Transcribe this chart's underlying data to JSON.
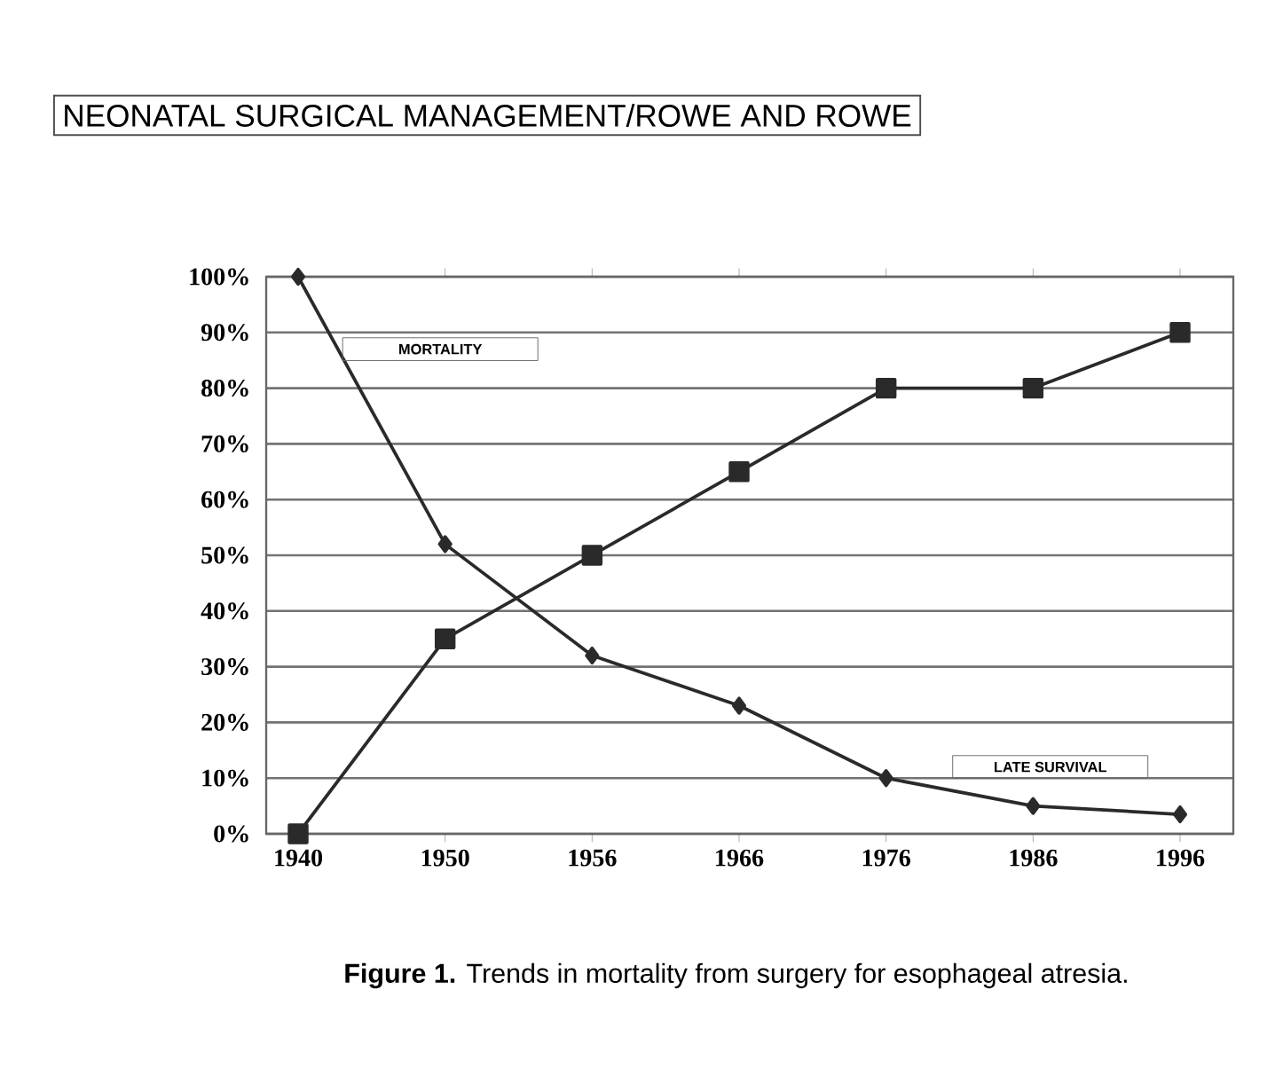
{
  "chart_data": {
    "type": "line",
    "categories": [
      "1940",
      "1950",
      "1956",
      "1966",
      "1976",
      "1986",
      "1996"
    ],
    "series": [
      {
        "color": "#2a2a2a",
        "marker": "diamond",
        "values": [
          100,
          52,
          32,
          23,
          10,
          5,
          3.5
        ]
      },
      {
        "color": "#2a2a2a",
        "marker": "square",
        "values": [
          0,
          35,
          50,
          65,
          80,
          80,
          90
        ]
      }
    ],
    "ylim": [
      0,
      100
    ],
    "yticks": [
      {
        "value": 0,
        "label": "0%"
      },
      {
        "value": 10,
        "label": "10%"
      },
      {
        "value": 20,
        "label": "20%"
      },
      {
        "value": 30,
        "label": "30%"
      },
      {
        "value": 40,
        "label": "40%"
      },
      {
        "value": 50,
        "label": "50%"
      },
      {
        "value": 60,
        "label": "60%"
      },
      {
        "value": 70,
        "label": "70%"
      },
      {
        "value": 80,
        "label": "80%"
      },
      {
        "value": 90,
        "label": "90%"
      },
      {
        "value": 100,
        "label": "100%"
      }
    ],
    "grid": "y",
    "line_style": "solid",
    "annotations": [
      "NEONATAL SURGICAL MANAGEMENT/ROWE AND ROWE",
      "MORTALITY",
      "LATE SURVIVAL",
      "**Figure 1.** Trends in mortality from surgery for esophageal atresia."
    ]
  }
}
